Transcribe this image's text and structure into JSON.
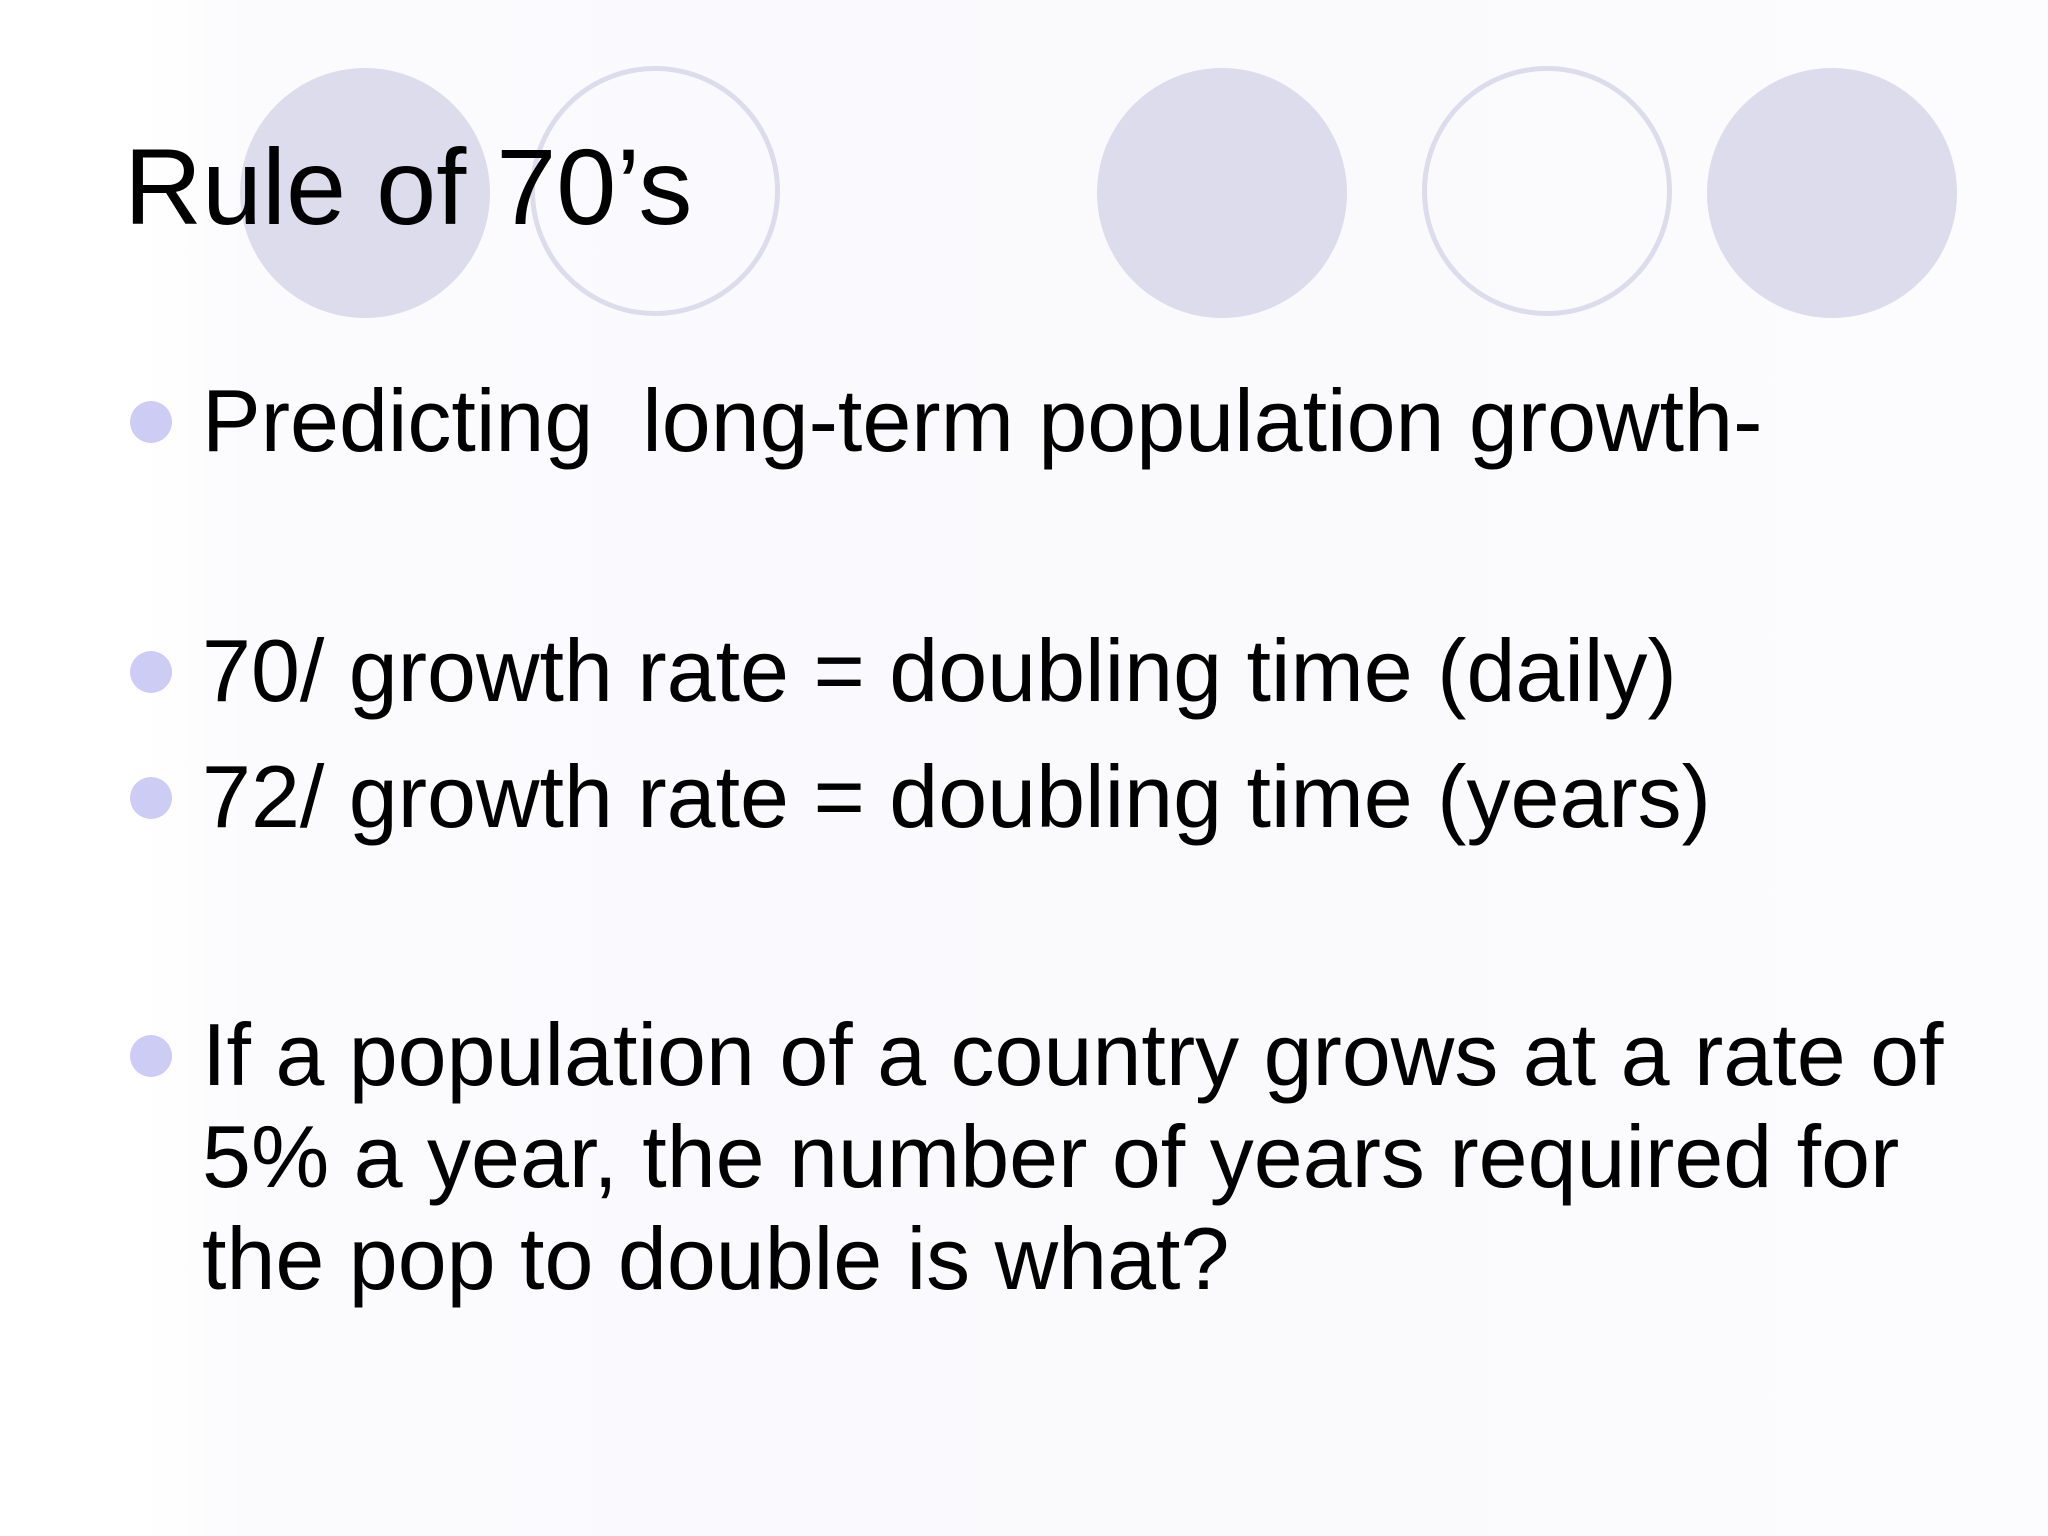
{
  "slide": {
    "title": "Rule of 70’s",
    "bullets": [
      {
        "text": "Predicting  long-term population growth-"
      },
      {
        "text": "70/ growth rate = doubling time (daily)"
      },
      {
        "text": "72/ growth rate = doubling time (years)"
      },
      {
        "text": "If a population of a country grows at a rate of 5% a year, the number of years required for the pop to double is what?"
      }
    ]
  },
  "colors": {
    "circle_fill": "#dcdcec",
    "bullet_dot": "#ccccf5",
    "text": "#000000"
  },
  "decorations": [
    "filled-circle",
    "outline-circle",
    "filled-circle",
    "outline-circle",
    "filled-circle"
  ]
}
